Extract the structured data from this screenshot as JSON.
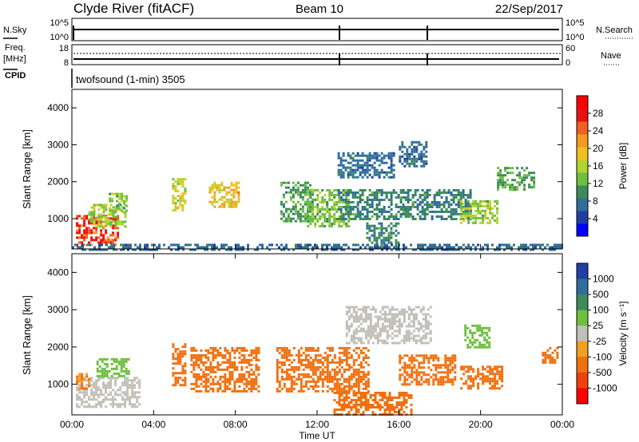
{
  "header": {
    "station": "Clyde River (fitACF)",
    "beam": "Beam 10",
    "date": "22/Sep/2017"
  },
  "noise_panel": {
    "left_label": "N.Sky",
    "right_label": "N.Search",
    "left_ticks": [
      "10^5",
      "10^0"
    ],
    "right_ticks": [
      "10^5",
      "10^0"
    ]
  },
  "freq_panel": {
    "left_label_1": "Freq.",
    "left_label_2": "[MHz]",
    "cpid_label": "CPID",
    "right_label": "Nave",
    "left_ticks": [
      "18",
      "8"
    ],
    "right_ticks": [
      "60",
      "0"
    ],
    "cpid_text": "twofsound (1-min) 3505"
  },
  "chart_data": [
    {
      "type": "heatmap",
      "name": "power",
      "ylabel": "Slant Range [km]",
      "xlabel": "",
      "ylim": [
        180,
        4500
      ],
      "yticks": [
        "1000",
        "2000",
        "3000",
        "4000"
      ],
      "colorbar_label": "Power [dB]",
      "colorbar_ticks": [
        "4",
        "8",
        "12",
        "16",
        "20",
        "24",
        "28"
      ],
      "colorbar_colors": [
        "#0000ff",
        "#1f3fa5",
        "#2f6e9b",
        "#3d8a5a",
        "#6fbf3f",
        "#b5d430",
        "#f0c020",
        "#f59a20",
        "#f06020",
        "#e81010",
        "#ff0000"
      ],
      "regions": [
        {
          "t0": 0.2,
          "t1": 2.2,
          "r0": 300,
          "r1": 1100,
          "value": 26
        },
        {
          "t0": 0.8,
          "t1": 2.6,
          "r0": 800,
          "r1": 1400,
          "value": 14
        },
        {
          "t0": 1.8,
          "t1": 2.7,
          "r0": 1200,
          "r1": 1700,
          "value": 12
        },
        {
          "t0": 4.9,
          "t1": 5.5,
          "r0": 1200,
          "r1": 2100,
          "value": 16
        },
        {
          "t0": 6.7,
          "t1": 8.2,
          "r0": 1300,
          "r1": 2000,
          "value": 18
        },
        {
          "t0": 10.2,
          "t1": 11.8,
          "r0": 900,
          "r1": 2000,
          "value": 10
        },
        {
          "t0": 11.5,
          "t1": 13.5,
          "r0": 800,
          "r1": 1800,
          "value": 12
        },
        {
          "t0": 13.0,
          "t1": 15.8,
          "r0": 2100,
          "r1": 2800,
          "value": 6
        },
        {
          "t0": 13.0,
          "t1": 19.5,
          "r0": 1000,
          "r1": 1800,
          "value": 8
        },
        {
          "t0": 16.0,
          "t1": 17.4,
          "r0": 2400,
          "r1": 3100,
          "value": 6
        },
        {
          "t0": 14.4,
          "t1": 16.0,
          "r0": 200,
          "r1": 900,
          "value": 8
        },
        {
          "t0": 19.0,
          "t1": 20.8,
          "r0": 900,
          "r1": 1500,
          "value": 14
        },
        {
          "t0": 20.8,
          "t1": 22.6,
          "r0": 1800,
          "r1": 2400,
          "value": 10
        },
        {
          "t0": 0.0,
          "t1": 24.0,
          "r0": 180,
          "r1": 320,
          "value": 6
        }
      ]
    },
    {
      "type": "heatmap",
      "name": "velocity",
      "ylabel": "Slant Range [km]",
      "xlabel": "Time UT",
      "ylim": [
        180,
        4500
      ],
      "yticks": [
        "1000",
        "2000",
        "3000",
        "4000"
      ],
      "xticks": [
        "00:00",
        "04:00",
        "08:00",
        "12:00",
        "16:00",
        "20:00",
        "00:00"
      ],
      "colorbar_label": "Velocity [m s⁻¹]",
      "colorbar_ticks": [
        "1000",
        "500",
        "100",
        "25",
        "-25",
        "-100",
        "-500",
        "-1000"
      ],
      "colorbar_colors": [
        "#1f3fa5",
        "#2f6e9b",
        "#3d8a5a",
        "#6fbf3f",
        "#c0c0b8",
        "#f0a020",
        "#f07010",
        "#f04010",
        "#ff0000"
      ],
      "regions": [
        {
          "t0": 0.2,
          "t1": 3.3,
          "r0": 400,
          "r1": 1200,
          "value": 0
        },
        {
          "t0": 0.2,
          "t1": 0.9,
          "r0": 900,
          "r1": 1300,
          "value": -150
        },
        {
          "t0": 1.2,
          "t1": 2.8,
          "r0": 1200,
          "r1": 1700,
          "value": 80
        },
        {
          "t0": 4.9,
          "t1": 5.6,
          "r0": 1000,
          "r1": 2100,
          "value": -300
        },
        {
          "t0": 5.8,
          "t1": 9.2,
          "r0": 800,
          "r1": 2000,
          "value": -300
        },
        {
          "t0": 10.0,
          "t1": 14.5,
          "r0": 800,
          "r1": 2000,
          "value": -250
        },
        {
          "t0": 13.4,
          "t1": 17.6,
          "r0": 2100,
          "r1": 3100,
          "value": 0
        },
        {
          "t0": 12.8,
          "t1": 16.6,
          "r0": 200,
          "r1": 800,
          "value": -300
        },
        {
          "t0": 16.0,
          "t1": 18.8,
          "r0": 1000,
          "r1": 1800,
          "value": -250
        },
        {
          "t0": 19.0,
          "t1": 21.0,
          "r0": 900,
          "r1": 1500,
          "value": -200
        },
        {
          "t0": 19.2,
          "t1": 20.4,
          "r0": 2000,
          "r1": 2600,
          "value": 50
        },
        {
          "t0": 23.0,
          "t1": 23.8,
          "r0": 1600,
          "r1": 2000,
          "value": -300
        }
      ]
    }
  ]
}
